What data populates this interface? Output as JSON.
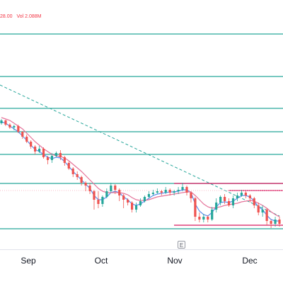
{
  "legend": {
    "close_fragment": "28.00",
    "volume_text": "Vol 2.088M"
  },
  "colors": {
    "level": "#26a69a",
    "trendline": "#26a69a",
    "box": "#d81b60",
    "ema_fast": "#5b8def",
    "ema_slow": "#e5739a",
    "candle_up": "#26a69a",
    "candle_down": "#ef5350",
    "price_line": "#f7a8b8"
  },
  "earnings_marker": {
    "label": "E"
  },
  "chart_data": {
    "type": "candlestick",
    "title": "",
    "x_axis": {
      "tick_labels": [
        "Sep",
        "Oct",
        "Nov",
        "Dec"
      ]
    },
    "y_axis": {
      "visible": false,
      "range": [
        0,
        352
      ]
    },
    "grid": false,
    "horizontal_levels": [
      48,
      108,
      153,
      186,
      218,
      259,
      323
    ],
    "trendline": {
      "from": [
        0,
        120
      ],
      "to": [
        395,
        305
      ]
    },
    "boxes": [
      {
        "top": 259,
        "bottom": 318,
        "from": 246,
        "to": 400
      },
      {
        "top": 269,
        "bottom": 269,
        "from": 323,
        "to": 400
      }
    ],
    "series": [
      {
        "name": "",
        "kind": "ohlc",
        "values": [
          [
            174,
            170,
            176,
            168
          ],
          [
            170,
            176,
            178,
            169
          ],
          [
            176,
            180,
            182,
            174
          ],
          [
            180,
            178,
            184,
            176
          ],
          [
            178,
            186,
            188,
            176
          ],
          [
            186,
            193,
            196,
            185
          ],
          [
            193,
            200,
            202,
            190
          ],
          [
            200,
            207,
            210,
            198
          ],
          [
            207,
            214,
            218,
            205
          ],
          [
            214,
            210,
            216,
            206
          ],
          [
            210,
            222,
            224,
            208
          ],
          [
            222,
            226,
            232,
            220
          ],
          [
            226,
            220,
            230,
            216
          ],
          [
            220,
            216,
            222,
            214
          ],
          [
            216,
            222,
            226,
            212
          ],
          [
            222,
            230,
            234,
            220
          ],
          [
            230,
            238,
            240,
            228
          ],
          [
            238,
            246,
            250,
            236
          ],
          [
            246,
            250,
            254,
            242
          ],
          [
            250,
            258,
            262,
            248
          ],
          [
            258,
            262,
            270,
            256
          ],
          [
            262,
            270,
            274,
            258
          ],
          [
            270,
            282,
            296,
            268
          ],
          [
            282,
            288,
            294,
            270
          ],
          [
            288,
            278,
            292,
            276
          ],
          [
            278,
            270,
            280,
            266
          ],
          [
            270,
            262,
            272,
            258
          ],
          [
            262,
            268,
            274,
            260
          ],
          [
            268,
            276,
            284,
            266
          ],
          [
            276,
            282,
            294,
            274
          ],
          [
            282,
            286,
            290,
            280
          ],
          [
            286,
            296,
            300,
            284
          ],
          [
            296,
            290,
            300,
            286
          ],
          [
            290,
            284,
            292,
            280
          ],
          [
            284,
            278,
            286,
            276
          ],
          [
            278,
            274,
            280,
            270
          ],
          [
            274,
            272,
            276,
            268
          ],
          [
            272,
            270,
            274,
            266
          ],
          [
            270,
            272,
            276,
            268
          ],
          [
            272,
            268,
            274,
            264
          ],
          [
            268,
            272,
            276,
            266
          ],
          [
            272,
            270,
            276,
            268
          ],
          [
            270,
            268,
            274,
            264
          ],
          [
            268,
            264,
            270,
            258
          ],
          [
            264,
            272,
            276,
            262
          ],
          [
            272,
            280,
            286,
            270
          ],
          [
            280,
            306,
            312,
            278
          ],
          [
            306,
            310,
            314,
            300
          ],
          [
            310,
            306,
            314,
            302
          ],
          [
            306,
            310,
            314,
            304
          ],
          [
            310,
            296,
            312,
            292
          ],
          [
            296,
            286,
            300,
            280
          ],
          [
            286,
            278,
            290,
            276
          ],
          [
            278,
            284,
            288,
            274
          ],
          [
            284,
            290,
            292,
            280
          ],
          [
            290,
            280,
            294,
            276
          ],
          [
            280,
            276,
            284,
            272
          ],
          [
            276,
            272,
            278,
            268
          ],
          [
            272,
            276,
            280,
            270
          ],
          [
            276,
            280,
            286,
            274
          ],
          [
            280,
            290,
            294,
            278
          ],
          [
            290,
            300,
            304,
            286
          ],
          [
            300,
            296,
            306,
            290
          ],
          [
            296,
            312,
            318,
            294
          ],
          [
            312,
            316,
            322,
            310
          ],
          [
            316,
            310,
            320,
            306
          ],
          [
            310,
            316,
            320,
            306
          ]
        ]
      },
      {
        "name": "",
        "kind": "line",
        "values": [
          172,
          174,
          178,
          182,
          186,
          192,
          198,
          205,
          211,
          214,
          218,
          222,
          224,
          222,
          223,
          228,
          235,
          242,
          248,
          254,
          260,
          266,
          276,
          282,
          282,
          278,
          272,
          270,
          272,
          278,
          282,
          288,
          290,
          288,
          284,
          280,
          276,
          274,
          273,
          272,
          271,
          271,
          270,
          268,
          268,
          272,
          288,
          298,
          303,
          305,
          300,
          292,
          286,
          285,
          286,
          284,
          280,
          276,
          276,
          278,
          284,
          292,
          296,
          304,
          310,
          312,
          312
        ]
      },
      {
        "name": "",
        "kind": "line",
        "values": [
          166,
          168,
          170,
          174,
          178,
          182,
          188,
          194,
          200,
          205,
          210,
          214,
          218,
          220,
          221,
          223,
          227,
          232,
          237,
          242,
          248,
          254,
          260,
          266,
          270,
          272,
          272,
          272,
          272,
          273,
          275,
          279,
          282,
          283,
          283,
          282,
          280,
          278,
          277,
          276,
          275,
          274,
          273,
          272,
          271,
          271,
          276,
          282,
          288,
          292,
          294,
          293,
          292,
          290,
          289,
          288,
          287,
          285,
          284,
          283,
          284,
          287,
          290,
          294,
          299,
          303,
          306
        ]
      }
    ]
  }
}
